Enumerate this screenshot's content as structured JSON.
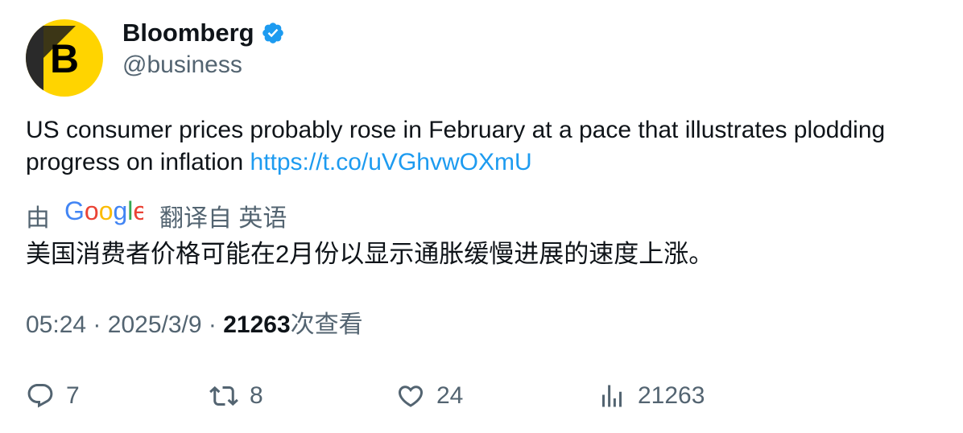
{
  "author": {
    "display_name": "Bloomberg",
    "handle": "@business",
    "avatar_letter": "B",
    "avatar_color": "#ffd400",
    "verified": true,
    "verified_color": "#1d9bf0"
  },
  "tweet": {
    "text": "US consumer prices probably rose in February at a pace that illustrates plodding progress on inflation",
    "link": "https://t.co/uVGhvwOXmU",
    "link_color": "#1d9bf0"
  },
  "translation": {
    "prefix": "由",
    "provider": "Google",
    "suffix": "翻译自 英语",
    "text": "美国消费者价格可能在2月份以显示通胀缓慢进展的速度上涨。"
  },
  "meta": {
    "time": "05:24",
    "separator": "·",
    "date": "2025/3/9",
    "views_count": "21263",
    "views_label": "次查看"
  },
  "actions": {
    "reply": {
      "icon": "reply-icon",
      "count": "7"
    },
    "retweet": {
      "icon": "retweet-icon",
      "count": "8"
    },
    "like": {
      "icon": "heart-icon",
      "count": "24"
    },
    "views": {
      "icon": "views-icon",
      "count": "21263"
    }
  }
}
